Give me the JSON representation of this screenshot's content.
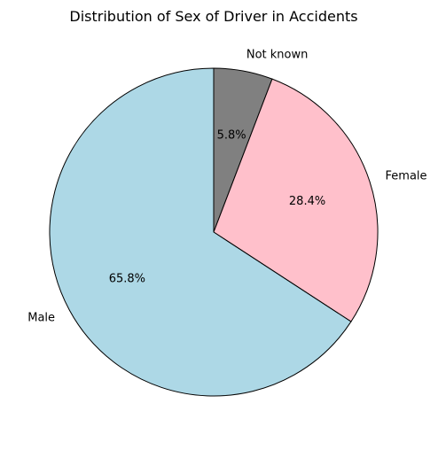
{
  "chart_data": {
    "type": "pie",
    "title": "Distribution of Sex of Driver in Accidents",
    "start_angle_deg": 90,
    "direction": "clockwise",
    "slices": [
      {
        "label": "Not known",
        "value": 5.8,
        "pct_label": "5.8%",
        "color": "#808080"
      },
      {
        "label": "Female",
        "value": 28.4,
        "pct_label": "28.4%",
        "color": "#ffc0cb"
      },
      {
        "label": "Male",
        "value": 65.8,
        "pct_label": "65.8%",
        "color": "#add8e6"
      }
    ],
    "edge_color": "#000000",
    "legend": "none"
  }
}
